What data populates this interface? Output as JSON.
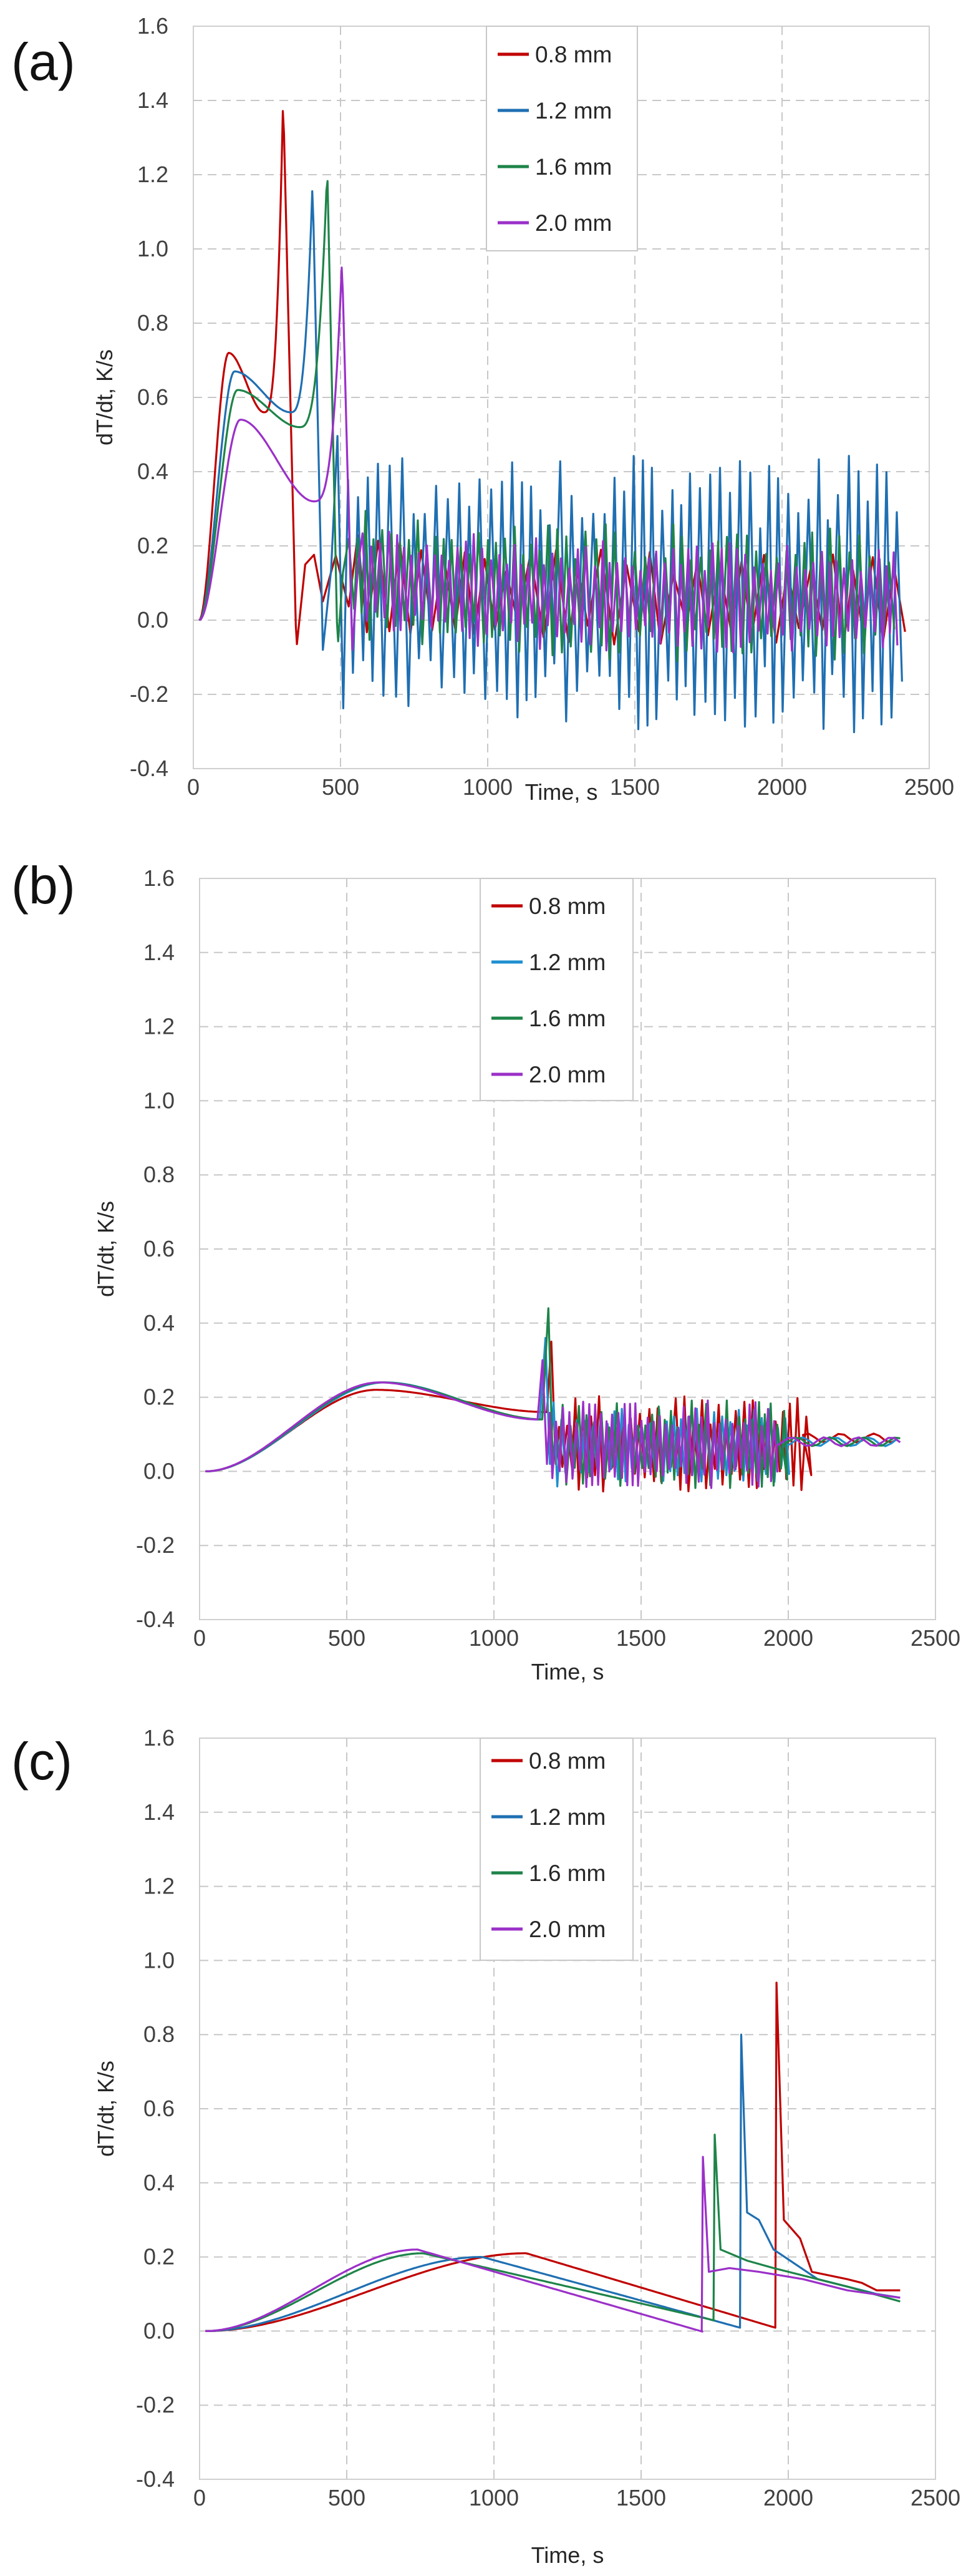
{
  "chart_data": [
    {
      "type": "line",
      "panel_label": "(a)",
      "xlabel": "Time, s",
      "ylabel": "dT/dt, K/s",
      "xlim": [
        0,
        2500
      ],
      "ylim": [
        -0.4,
        1.6
      ],
      "x_ticks": [
        "0",
        "500",
        "1000",
        "1500",
        "2000",
        "2500"
      ],
      "y_ticks": [
        "-0.4",
        "-0.2",
        "0.0",
        "0.2",
        "0.4",
        "0.6",
        "0.8",
        "1.0",
        "1.2",
        "1.4",
        "1.6"
      ],
      "legend_position": "top-center",
      "series": [
        {
          "name": "0.8 mm",
          "color": "#C00000",
          "profile": "oscillating",
          "rise_peak": [
            120,
            0.72
          ],
          "dip": [
            240,
            0.56
          ],
          "spike": [
            305,
            1.41
          ],
          "spike_end": 350,
          "osc_start": 380,
          "osc_amplitude": 0.12,
          "osc_period": 75,
          "end_value": 0.05
        },
        {
          "name": "1.2 mm",
          "color": "#1F6FB2",
          "profile": "oscillating",
          "rise_peak": [
            140,
            0.67
          ],
          "dip": [
            330,
            0.56
          ],
          "spike": [
            405,
            1.18
          ],
          "spike_end": 440,
          "osc_start": 470,
          "osc_amplitude": 0.35,
          "osc_period": 36,
          "end_value": 0.05
        },
        {
          "name": "1.6 mm",
          "color": "#1E8449",
          "profile": "oscillating",
          "rise_peak": [
            150,
            0.62
          ],
          "dip": [
            360,
            0.52
          ],
          "spike": [
            455,
            1.22
          ],
          "spike_end": 490,
          "osc_start": 510,
          "osc_amplitude": 0.17,
          "osc_period": 32,
          "end_value": 0.06
        },
        {
          "name": "2.0 mm",
          "color": "#9B30C8",
          "profile": "oscillating",
          "rise_peak": [
            160,
            0.54
          ],
          "dip": [
            410,
            0.32
          ],
          "spike": [
            505,
            0.97
          ],
          "spike_end": 540,
          "osc_start": 560,
          "osc_amplitude": 0.14,
          "osc_period": 27,
          "end_value": 0.05
        }
      ]
    },
    {
      "type": "line",
      "panel_label": "(b)",
      "xlabel": "Time, s",
      "ylabel": "dT/dt, K/s",
      "xlim": [
        0,
        2500
      ],
      "ylim": [
        -0.4,
        1.6
      ],
      "x_ticks": [
        "0",
        "500",
        "1000",
        "1500",
        "2000",
        "2500"
      ],
      "y_ticks": [
        "-0.4",
        "-0.2",
        "0.0",
        "0.2",
        "0.4",
        "0.6",
        "0.8",
        "1.0",
        "1.2",
        "1.4",
        "1.6"
      ],
      "legend_position": "top-center",
      "series": [
        {
          "name": "0.8 mm",
          "color": "#C00000",
          "profile": "smooth_then_oscillating",
          "hump_peak": [
            600,
            0.22
          ],
          "pre_osc_value": 0.16,
          "osc_start": 1180,
          "osc_end": 2050,
          "first_peak": 0.35,
          "osc_amplitude": 0.12,
          "osc_period": 28,
          "end_value": 0.09
        },
        {
          "name": "1.2 mm",
          "color": "#1F8FD0",
          "profile": "smooth_then_oscillating",
          "hump_peak": [
            630,
            0.24
          ],
          "pre_osc_value": 0.14,
          "osc_start": 1160,
          "osc_end": 1990,
          "first_peak": 0.36,
          "osc_amplitude": 0.11,
          "osc_period": 26,
          "end_value": 0.08
        },
        {
          "name": "1.6 mm",
          "color": "#1E8449",
          "profile": "smooth_then_oscillating",
          "hump_peak": [
            620,
            0.24
          ],
          "pre_osc_value": 0.14,
          "osc_start": 1170,
          "osc_end": 1980,
          "first_peak": 0.44,
          "osc_amplitude": 0.11,
          "osc_period": 24,
          "end_value": 0.08
        },
        {
          "name": "2.0 mm",
          "color": "#9B30C8",
          "profile": "smooth_then_oscillating",
          "hump_peak": [
            610,
            0.24
          ],
          "pre_osc_value": 0.14,
          "osc_start": 1150,
          "osc_end": 1960,
          "first_peak": 0.3,
          "osc_amplitude": 0.11,
          "osc_period": 22,
          "end_value": 0.08
        }
      ]
    },
    {
      "type": "line",
      "panel_label": "(c)",
      "xlabel": "Time, s",
      "ylabel": "dT/dt, K/s",
      "xlim": [
        0,
        2500
      ],
      "ylim": [
        -0.4,
        1.6
      ],
      "x_ticks": [
        "0",
        "500",
        "1000",
        "1500",
        "2000",
        "2500"
      ],
      "y_ticks": [
        "-0.4",
        "-0.2",
        "0.0",
        "0.2",
        "0.4",
        "0.6",
        "0.8",
        "1.0",
        "1.2",
        "1.4",
        "1.6"
      ],
      "legend_position": "top-center",
      "series": [
        {
          "name": "0.8 mm",
          "color": "#C00000",
          "profile": "hump_then_spike",
          "hump_peak": [
            1110,
            0.21
          ],
          "spike": [
            1960,
            0.94
          ],
          "trough_value": 0.01,
          "after_values": [
            [
              1985,
              0.3
            ],
            [
              2040,
              0.25
            ],
            [
              2080,
              0.16
            ],
            [
              2200,
              0.14
            ],
            [
              2250,
              0.13
            ],
            [
              2300,
              0.11
            ],
            [
              2380,
              0.11
            ]
          ]
        },
        {
          "name": "1.2 mm",
          "color": "#1F6FB2",
          "profile": "hump_then_spike",
          "hump_peak": [
            960,
            0.2
          ],
          "spike": [
            1840,
            0.8
          ],
          "trough_value": 0.01,
          "after_values": [
            [
              1860,
              0.32
            ],
            [
              1900,
              0.3
            ],
            [
              1950,
              0.22
            ],
            [
              2100,
              0.14
            ],
            [
              2300,
              0.1
            ],
            [
              2380,
              0.09
            ]
          ]
        },
        {
          "name": "1.6 mm",
          "color": "#1E8449",
          "profile": "hump_then_spike",
          "hump_peak": [
            760,
            0.21
          ],
          "spike": [
            1750,
            0.53
          ],
          "trough_value": 0.03,
          "after_values": [
            [
              1770,
              0.22
            ],
            [
              1860,
              0.19
            ],
            [
              1950,
              0.17
            ],
            [
              2050,
              0.15
            ],
            [
              2200,
              0.12
            ],
            [
              2380,
              0.08
            ]
          ]
        },
        {
          "name": "2.0 mm",
          "color": "#9B30C8",
          "profile": "hump_then_spike",
          "hump_peak": [
            740,
            0.22
          ],
          "spike": [
            1710,
            0.47
          ],
          "trough_value": 0.0,
          "after_values": [
            [
              1730,
              0.16
            ],
            [
              1800,
              0.17
            ],
            [
              1900,
              0.16
            ],
            [
              2050,
              0.14
            ],
            [
              2200,
              0.11
            ],
            [
              2380,
              0.09
            ]
          ]
        }
      ]
    }
  ]
}
